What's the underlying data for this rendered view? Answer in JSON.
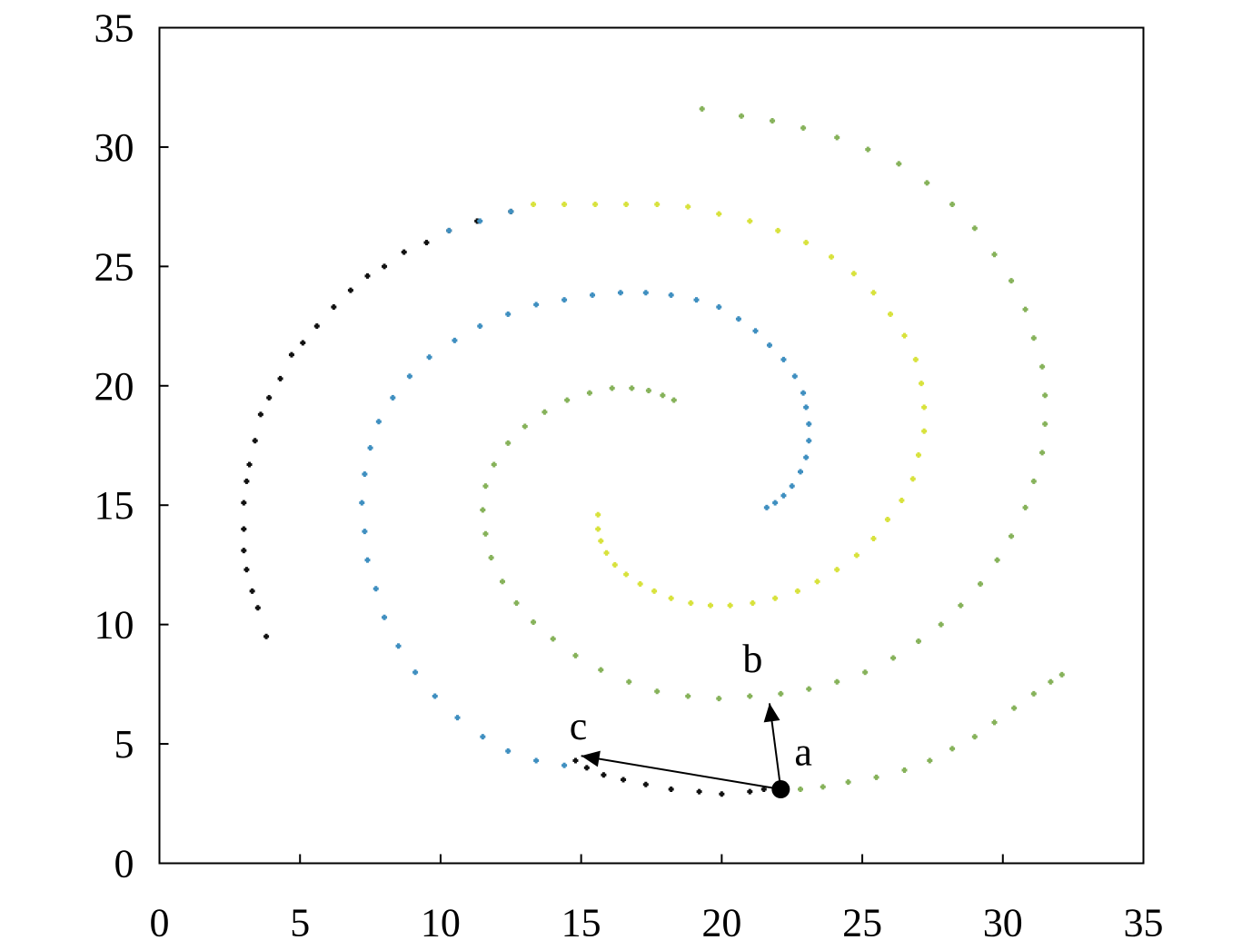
{
  "chart_data": {
    "type": "scatter",
    "title": "",
    "xlabel": "",
    "ylabel": "",
    "xlim": [
      0,
      35
    ],
    "ylim": [
      0,
      35
    ],
    "xticks": [
      0,
      5,
      10,
      15,
      20,
      25,
      30,
      35
    ],
    "yticks": [
      0,
      5,
      10,
      15,
      20,
      25,
      30,
      35
    ],
    "grid": false,
    "colors": {
      "black": "#111111",
      "blue": "#3f8fc0",
      "green": "#86b25a",
      "yellow": "#d8e23c",
      "arrow": "#000000"
    },
    "series": [
      {
        "color": "black",
        "points": [
          [
            3.8,
            9.5
          ],
          [
            3.5,
            10.7
          ],
          [
            3.3,
            11.4
          ],
          [
            3.1,
            12.3
          ],
          [
            3.0,
            13.1
          ],
          [
            3.0,
            14.0
          ],
          [
            3.0,
            15.1
          ],
          [
            3.1,
            16.0
          ],
          [
            3.2,
            16.7
          ],
          [
            3.4,
            17.7
          ],
          [
            3.6,
            18.8
          ],
          [
            3.9,
            19.5
          ],
          [
            4.3,
            20.3
          ],
          [
            4.7,
            21.3
          ],
          [
            5.1,
            21.8
          ],
          [
            5.6,
            22.5
          ],
          [
            6.2,
            23.3
          ],
          [
            6.8,
            24.0
          ],
          [
            7.4,
            24.6
          ],
          [
            8.0,
            25.0
          ],
          [
            8.7,
            25.6
          ],
          [
            9.5,
            26.0
          ],
          [
            10.3,
            26.5
          ],
          [
            11.3,
            26.9
          ],
          [
            12.5,
            27.3
          ],
          [
            14.8,
            4.3
          ],
          [
            15.2,
            4.0
          ],
          [
            15.8,
            3.7
          ],
          [
            16.5,
            3.5
          ],
          [
            17.3,
            3.3
          ],
          [
            18.2,
            3.1
          ],
          [
            19.2,
            3.0
          ],
          [
            20.0,
            2.9
          ],
          [
            21.0,
            3.0
          ],
          [
            21.5,
            3.1
          ]
        ]
      },
      {
        "color": "blue",
        "points": [
          [
            10.3,
            26.5
          ],
          [
            11.4,
            26.9
          ],
          [
            12.5,
            27.3
          ],
          [
            21.6,
            14.9
          ],
          [
            21.9,
            15.1
          ],
          [
            22.2,
            15.4
          ],
          [
            22.5,
            15.8
          ],
          [
            22.8,
            16.4
          ],
          [
            23.0,
            17.0
          ],
          [
            23.1,
            17.7
          ],
          [
            23.1,
            18.4
          ],
          [
            23.0,
            19.1
          ],
          [
            22.9,
            19.7
          ],
          [
            22.6,
            20.4
          ],
          [
            22.2,
            21.1
          ],
          [
            21.7,
            21.7
          ],
          [
            21.2,
            22.3
          ],
          [
            20.6,
            22.8
          ],
          [
            19.9,
            23.3
          ],
          [
            19.1,
            23.6
          ],
          [
            18.2,
            23.8
          ],
          [
            17.3,
            23.9
          ],
          [
            16.4,
            23.9
          ],
          [
            15.4,
            23.8
          ],
          [
            14.4,
            23.6
          ],
          [
            13.4,
            23.4
          ],
          [
            12.4,
            23.0
          ],
          [
            11.4,
            22.5
          ],
          [
            10.5,
            21.9
          ],
          [
            9.6,
            21.2
          ],
          [
            8.9,
            20.4
          ],
          [
            8.3,
            19.5
          ],
          [
            7.8,
            18.5
          ],
          [
            7.5,
            17.4
          ],
          [
            7.3,
            16.3
          ],
          [
            7.2,
            15.1
          ],
          [
            7.3,
            13.9
          ],
          [
            7.4,
            12.7
          ],
          [
            7.7,
            11.5
          ],
          [
            8.0,
            10.3
          ],
          [
            8.5,
            9.1
          ],
          [
            9.1,
            8.0
          ],
          [
            9.8,
            7.0
          ],
          [
            10.6,
            6.1
          ],
          [
            11.5,
            5.3
          ],
          [
            12.4,
            4.7
          ],
          [
            13.4,
            4.3
          ],
          [
            14.4,
            4.1
          ]
        ]
      },
      {
        "color": "green",
        "points": [
          [
            18.3,
            19.4
          ],
          [
            17.9,
            19.6
          ],
          [
            17.4,
            19.8
          ],
          [
            16.8,
            19.9
          ],
          [
            16.1,
            19.9
          ],
          [
            15.3,
            19.7
          ],
          [
            14.5,
            19.4
          ],
          [
            13.7,
            18.9
          ],
          [
            13.0,
            18.3
          ],
          [
            12.4,
            17.6
          ],
          [
            11.9,
            16.7
          ],
          [
            11.6,
            15.8
          ],
          [
            11.5,
            14.8
          ],
          [
            11.6,
            13.8
          ],
          [
            11.8,
            12.8
          ],
          [
            12.2,
            11.8
          ],
          [
            12.7,
            10.9
          ],
          [
            13.3,
            10.1
          ],
          [
            14.0,
            9.4
          ],
          [
            14.8,
            8.7
          ],
          [
            15.7,
            8.1
          ],
          [
            16.7,
            7.6
          ],
          [
            17.7,
            7.2
          ],
          [
            18.8,
            7.0
          ],
          [
            19.9,
            6.9
          ],
          [
            21.0,
            7.0
          ],
          [
            22.1,
            7.1
          ],
          [
            23.1,
            7.3
          ],
          [
            24.1,
            7.6
          ],
          [
            25.1,
            8.0
          ],
          [
            26.1,
            8.6
          ],
          [
            27.0,
            9.3
          ],
          [
            27.8,
            10.0
          ],
          [
            28.5,
            10.8
          ],
          [
            29.2,
            11.7
          ],
          [
            29.8,
            12.7
          ],
          [
            30.3,
            13.7
          ],
          [
            30.8,
            14.9
          ],
          [
            31.1,
            16.0
          ],
          [
            31.4,
            17.2
          ],
          [
            31.5,
            18.4
          ],
          [
            31.5,
            19.6
          ],
          [
            31.4,
            20.8
          ],
          [
            31.1,
            22.0
          ],
          [
            30.8,
            23.2
          ],
          [
            30.3,
            24.4
          ],
          [
            29.7,
            25.5
          ],
          [
            29.0,
            26.6
          ],
          [
            28.2,
            27.6
          ],
          [
            27.3,
            28.5
          ],
          [
            26.3,
            29.3
          ],
          [
            25.2,
            29.9
          ],
          [
            24.1,
            30.4
          ],
          [
            22.9,
            30.8
          ],
          [
            21.8,
            31.1
          ],
          [
            20.7,
            31.3
          ],
          [
            19.3,
            31.6
          ],
          [
            22.8,
            3.1
          ],
          [
            23.6,
            3.2
          ],
          [
            24.5,
            3.4
          ],
          [
            25.5,
            3.6
          ],
          [
            26.5,
            3.9
          ],
          [
            27.4,
            4.3
          ],
          [
            28.2,
            4.8
          ],
          [
            29.0,
            5.3
          ],
          [
            29.7,
            5.9
          ],
          [
            30.4,
            6.5
          ],
          [
            31.1,
            7.1
          ],
          [
            31.7,
            7.6
          ],
          [
            32.1,
            7.9
          ]
        ]
      },
      {
        "color": "yellow",
        "points": [
          [
            15.6,
            14.6
          ],
          [
            15.6,
            14.0
          ],
          [
            15.7,
            13.5
          ],
          [
            15.9,
            13.0
          ],
          [
            16.2,
            12.5
          ],
          [
            16.6,
            12.1
          ],
          [
            17.1,
            11.7
          ],
          [
            17.6,
            11.4
          ],
          [
            18.2,
            11.1
          ],
          [
            18.9,
            10.9
          ],
          [
            19.6,
            10.8
          ],
          [
            20.3,
            10.8
          ],
          [
            21.1,
            10.9
          ],
          [
            21.9,
            11.1
          ],
          [
            22.7,
            11.4
          ],
          [
            23.4,
            11.8
          ],
          [
            24.1,
            12.3
          ],
          [
            24.8,
            12.9
          ],
          [
            25.4,
            13.6
          ],
          [
            25.9,
            14.4
          ],
          [
            26.4,
            15.2
          ],
          [
            26.8,
            16.1
          ],
          [
            27.0,
            17.1
          ],
          [
            27.2,
            18.1
          ],
          [
            27.2,
            19.1
          ],
          [
            27.1,
            20.1
          ],
          [
            26.9,
            21.1
          ],
          [
            26.5,
            22.1
          ],
          [
            26.0,
            23.0
          ],
          [
            25.4,
            23.9
          ],
          [
            24.7,
            24.7
          ],
          [
            23.9,
            25.4
          ],
          [
            23.0,
            26.0
          ],
          [
            22.0,
            26.5
          ],
          [
            21.0,
            26.9
          ],
          [
            19.9,
            27.2
          ],
          [
            18.8,
            27.5
          ],
          [
            17.7,
            27.6
          ],
          [
            16.6,
            27.6
          ],
          [
            15.5,
            27.6
          ],
          [
            14.4,
            27.6
          ],
          [
            13.3,
            27.6
          ]
        ]
      }
    ],
    "annotations": [
      {
        "label": "a",
        "x": 22.1,
        "y": 3.1,
        "label_x": 22.9,
        "label_y": 4.1
      },
      {
        "label": "b",
        "x": 21.7,
        "y": 6.7,
        "label_x": 21.1,
        "label_y": 8.0
      },
      {
        "label": "c",
        "x": 15.0,
        "y": 4.5,
        "label_x": 14.9,
        "label_y": 5.2
      }
    ]
  }
}
